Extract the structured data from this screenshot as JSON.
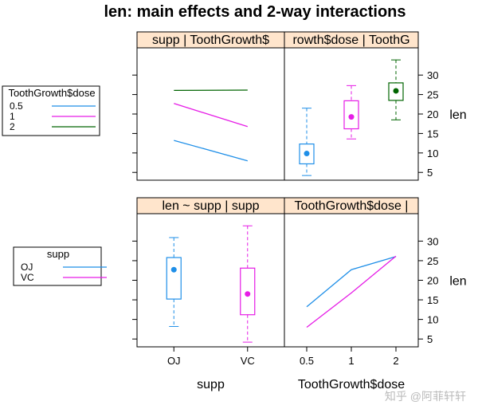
{
  "title": "len: main effects and 2-way interactions",
  "watermark": "知乎 @阿菲轩轩",
  "colors": {
    "dose_0.5": "#1f8fe8",
    "dose_1": "#e61ce6",
    "dose_2": "#006400",
    "strip_bg": "#ffe5cc",
    "frame": "#000000"
  },
  "legends": [
    {
      "title": "ToothGrowth$dose",
      "entries": [
        {
          "label": "0.5",
          "color": "#1f8fe8"
        },
        {
          "label": "1",
          "color": "#e61ce6"
        },
        {
          "label": "2",
          "color": "#006400"
        }
      ]
    },
    {
      "title": "supp",
      "entries": [
        {
          "label": "OJ",
          "color": "#1f8fe8"
        },
        {
          "label": "VC",
          "color": "#e61ce6"
        }
      ]
    }
  ],
  "chart_data": [
    {
      "panel": "top-left",
      "type": "line",
      "strip": "supp | ToothGrowth$",
      "categories": [
        "OJ",
        "VC"
      ],
      "series": [
        {
          "name": "0.5",
          "values": [
            13.23,
            7.98
          ]
        },
        {
          "name": "1",
          "values": [
            22.7,
            16.77
          ]
        },
        {
          "name": "2",
          "values": [
            26.06,
            26.14
          ]
        }
      ],
      "ylim": [
        3,
        37
      ]
    },
    {
      "panel": "top-right",
      "type": "box",
      "strip": "rowth$dose | ToothG",
      "categories": [
        "0.5",
        "1",
        "2"
      ],
      "boxes": [
        {
          "name": "0.5",
          "whisker_low": 4.2,
          "q1": 7.2,
          "median": 9.85,
          "q3": 12.3,
          "whisker_high": 21.5
        },
        {
          "name": "1",
          "whisker_low": 13.6,
          "q1": 16.2,
          "median": 19.25,
          "q3": 23.4,
          "whisker_high": 27.3
        },
        {
          "name": "2",
          "whisker_low": 18.5,
          "q1": 23.5,
          "median": 25.95,
          "q3": 28.0,
          "whisker_high": 33.9
        }
      ],
      "ylim": [
        3,
        37
      ],
      "ylabel": "len",
      "yticks": [
        "5",
        "10",
        "15",
        "20",
        "25",
        "30"
      ]
    },
    {
      "panel": "bottom-left",
      "type": "box",
      "strip": "len ~ supp | supp",
      "categories": [
        "OJ",
        "VC"
      ],
      "boxes": [
        {
          "name": "OJ",
          "whisker_low": 8.2,
          "q1": 15.2,
          "median": 22.7,
          "q3": 25.8,
          "whisker_high": 30.9
        },
        {
          "name": "VC",
          "whisker_low": 4.2,
          "q1": 11.2,
          "median": 16.5,
          "q3": 23.1,
          "whisker_high": 33.9
        }
      ],
      "ylim": [
        3,
        37
      ],
      "xlabel": "supp"
    },
    {
      "panel": "bottom-right",
      "type": "line",
      "strip": "ToothGrowth$dose |",
      "categories": [
        "0.5",
        "1",
        "2"
      ],
      "series": [
        {
          "name": "OJ",
          "values": [
            13.23,
            22.7,
            26.06
          ]
        },
        {
          "name": "VC",
          "values": [
            7.98,
            16.77,
            26.14
          ]
        }
      ],
      "ylim": [
        3,
        37
      ],
      "xlabel": "ToothGrowth$dose",
      "ylabel": "len",
      "yticks": [
        "5",
        "10",
        "15",
        "20",
        "25",
        "30"
      ]
    }
  ]
}
